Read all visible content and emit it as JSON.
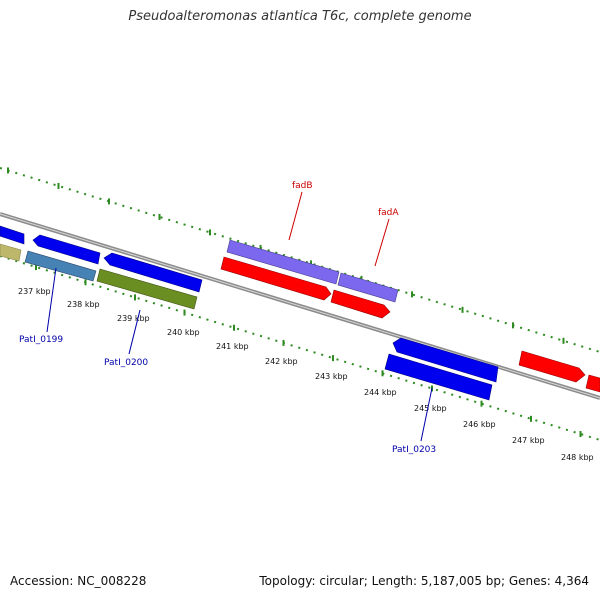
{
  "title": "Pseudoalteromonas atlantica T6c, complete genome",
  "footer": {
    "accession": "Accession: NC_008228",
    "summary": "Topology: circular; Length: 5,187,005 bp; Genes: 4,364"
  },
  "colors": {
    "backbone": "#8c8c8c",
    "scale_ticks": "#2e8b22",
    "red_genes": "#ff0000",
    "blue_genes": "#0000ee",
    "purple_genes": "#7b68ee",
    "olive_genes": "#6b8e23",
    "steel_genes": "#4682b4",
    "khaki_genes": "#bdb76b",
    "red_labels": "#cc0000",
    "blue_labels": "#0000aa"
  },
  "scale": {
    "labels": [
      "237 kbp",
      "238 kbp",
      "239 kbp",
      "240 kbp",
      "241 kbp",
      "242 kbp",
      "243 kbp",
      "244 kbp",
      "245 kbp",
      "246 kbp",
      "247 kbp",
      "248 kbp"
    ]
  },
  "gene_labels": {
    "fadB": "fadB",
    "fadA": "fadA",
    "patl_0199": "PatI_0199",
    "patl_0200": "PatI_0200",
    "patl_0203": "PatI_0203"
  }
}
